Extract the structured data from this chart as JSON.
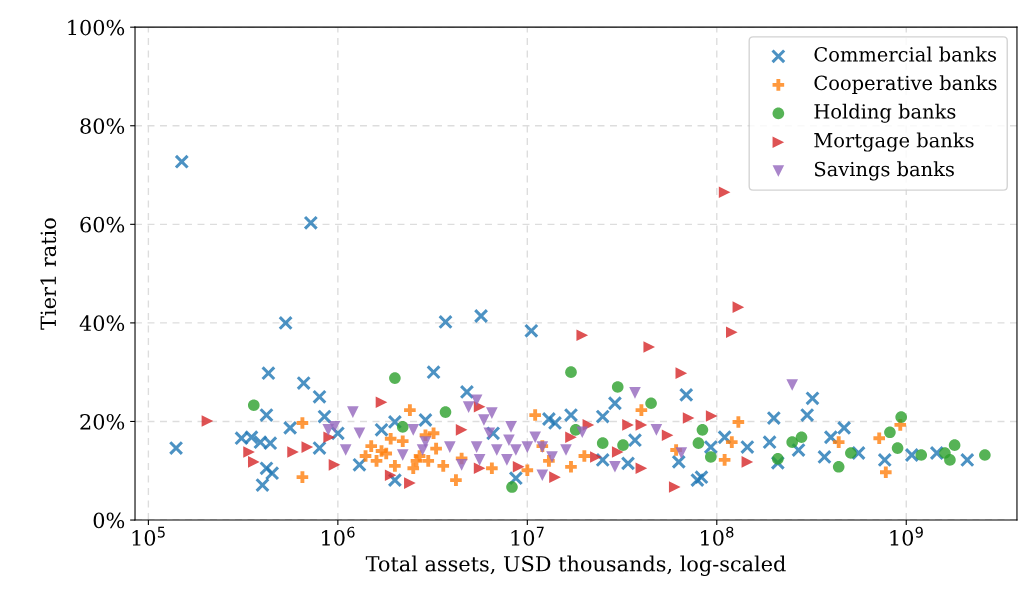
{
  "chart_data": {
    "type": "scatter",
    "xlabel": "Total assets, USD thousands, log-scaled",
    "ylabel": "Tier1 ratio",
    "log": "x",
    "grid": true,
    "legend": "top right",
    "xlim": [
      85000,
      3840000000
    ],
    "ylim": [
      0,
      100
    ],
    "xticks": [
      {
        "value": 100000,
        "label": "10$^{5}$"
      },
      {
        "value": 1000000,
        "label": "10$^{6}$"
      },
      {
        "value": 10000000,
        "label": "10$^{7}$"
      },
      {
        "value": 100000000,
        "label": "10$^{8}$"
      },
      {
        "value": 1000000000,
        "label": "10$^{9}$"
      }
    ],
    "yticks": [
      {
        "value": 0,
        "label": "0%"
      },
      {
        "value": 20,
        "label": "20%"
      },
      {
        "value": 40,
        "label": "40%"
      },
      {
        "value": 60,
        "label": "60%"
      },
      {
        "value": 80,
        "label": "80%"
      },
      {
        "value": 100,
        "label": "100%"
      }
    ],
    "series": [
      {
        "name": "Commercial banks",
        "color": "#1f77b4",
        "marker": "cross",
        "x": [
          150000,
          140000,
          720000,
          530000,
          430000,
          660000,
          800000,
          420000,
          850000,
          310000,
          350000,
          390000,
          440000,
          420000,
          450000,
          400000,
          560000,
          800000,
          1000000,
          1300000,
          2000000,
          2000000,
          2900000,
          1700000,
          3200000,
          3700000,
          4800000,
          5700000,
          10500000,
          29000000,
          25000000,
          69000000,
          17000000,
          79000000,
          34000000,
          63000000,
          93000000,
          8700000,
          14000000,
          37000000,
          25000000,
          13000000,
          6600000,
          320000000,
          300000000,
          200000000,
          110000000,
          145000000,
          190000000,
          270000000,
          210000000,
          400000000,
          470000000,
          370000000,
          560000000,
          770000000,
          1070000000,
          1450000000,
          2100000000,
          83000000
        ],
        "values": [
          72.7,
          14.6,
          60.3,
          40,
          29.8,
          27.8,
          25,
          21.3,
          21,
          16.6,
          16.8,
          15.8,
          15.6,
          10.5,
          9.5,
          7.1,
          18.7,
          14.6,
          17.6,
          11.2,
          8.1,
          19.9,
          20.3,
          18.3,
          30,
          40.2,
          26,
          41.4,
          38.4,
          23.7,
          21,
          25.4,
          21.3,
          8.1,
          11.5,
          11.8,
          14.8,
          8.5,
          19.7,
          16.2,
          12.2,
          20.5,
          17.6,
          24.7,
          21.3,
          20.7,
          16.8,
          14.8,
          15.8,
          14.2,
          11.6,
          16.8,
          18.7,
          12.8,
          13.6,
          12.2,
          13.2,
          13.6,
          12.2,
          8.7
        ]
      },
      {
        "name": "Cooperative banks",
        "color": "#ff7f0e",
        "marker": "plus",
        "x": [
          650000,
          650000,
          2400000,
          4200000,
          11000000,
          40000000,
          17000000,
          61000000,
          3200000,
          10000000,
          130000000,
          120000000,
          110000000,
          440000000,
          720000000,
          780000000,
          930000000,
          1500000,
          1600000,
          1800000,
          2000000,
          2200000,
          2500000,
          2700000,
          3000000,
          3300000,
          1400000,
          2900000,
          1900000,
          2600000,
          3600000,
          4500000,
          6500000,
          13000000,
          20000000,
          12000000,
          1700000
        ],
        "values": [
          19.7,
          8.7,
          22.3,
          8.1,
          21.3,
          22.3,
          10.8,
          14.2,
          17.6,
          10.1,
          19.9,
          15.8,
          12.2,
          15.8,
          16.6,
          9.7,
          19.3,
          15,
          12,
          13.5,
          11,
          16,
          10.5,
          13,
          12,
          14.5,
          13,
          17.2,
          16.5,
          12,
          11,
          12.5,
          10.5,
          12,
          13,
          15,
          14
        ]
      },
      {
        "name": "Holding banks",
        "color": "#2ca02c",
        "marker": "circle",
        "x": [
          360000,
          2000000,
          2200000,
          3700000,
          17000000,
          30000000,
          45000000,
          8300000,
          25000000,
          32000000,
          18000000,
          84000000,
          80000000,
          93000000,
          210000000,
          250000000,
          280000000,
          440000000,
          510000000,
          820000000,
          940000000,
          900000000,
          1200000000,
          1600000000,
          1800000000,
          1700000000,
          2600000000
        ],
        "values": [
          23.3,
          28.8,
          18.9,
          21.9,
          30,
          27,
          23.7,
          6.7,
          15.6,
          15.2,
          18.3,
          18.3,
          15.6,
          12.8,
          12.4,
          15.8,
          16.8,
          10.8,
          13.6,
          17.8,
          20.9,
          14.6,
          13.2,
          13.6,
          15.2,
          12.2,
          13.2
        ]
      },
      {
        "name": "Mortgage banks",
        "color": "#d62728",
        "marker": "triangle-right",
        "x": [
          205000,
          340000,
          360000,
          580000,
          690000,
          960000,
          1700000,
          1900000,
          2400000,
          19500000,
          44000000,
          65000000,
          71000000,
          60000000,
          34000000,
          40000000,
          21000000,
          55000000,
          17000000,
          14000000,
          30000000,
          40000000,
          23000000,
          5600000,
          4500000,
          5600000,
          9000000,
          130000000,
          120000000,
          94000000,
          145000000,
          110000000,
          900000
        ],
        "values": [
          20.1,
          13.8,
          11.8,
          13.8,
          14.8,
          11.2,
          23.9,
          9.1,
          7.5,
          37.5,
          35.1,
          29.8,
          20.7,
          6.7,
          19.3,
          19.3,
          19.3,
          17.2,
          16.8,
          8.7,
          13.8,
          10.5,
          12.8,
          23,
          18.3,
          10.5,
          10.8,
          43.2,
          38.1,
          21.1,
          11.8,
          66.5,
          16.8
        ]
      },
      {
        "name": "Savings banks",
        "color": "#9467bd",
        "marker": "triangle-down",
        "x": [
          1200000,
          960000,
          890000,
          1100000,
          1300000,
          2200000,
          2800000,
          2900000,
          2500000,
          5400000,
          4900000,
          6500000,
          5900000,
          8200000,
          37000000,
          48000000,
          19500000,
          12000000,
          29000000,
          65000000,
          4500000,
          3900000,
          8700000,
          10000000,
          6900000,
          7800000,
          12000000,
          13500000,
          5400000,
          5600000,
          16000000,
          6300000,
          8000000,
          11000000,
          250000000
        ],
        "values": [
          21.9,
          18.9,
          18.3,
          14.2,
          17.6,
          13.2,
          14.2,
          15.8,
          18.3,
          24.3,
          22.9,
          21.7,
          20.3,
          18.9,
          25.8,
          18.3,
          17.8,
          9.1,
          10.8,
          13.6,
          11.2,
          14.8,
          14.2,
          14.8,
          14.2,
          12.2,
          14.8,
          12.8,
          14.8,
          12.2,
          14.2,
          17.6,
          16.2,
          16.8,
          27.4
        ]
      }
    ]
  }
}
